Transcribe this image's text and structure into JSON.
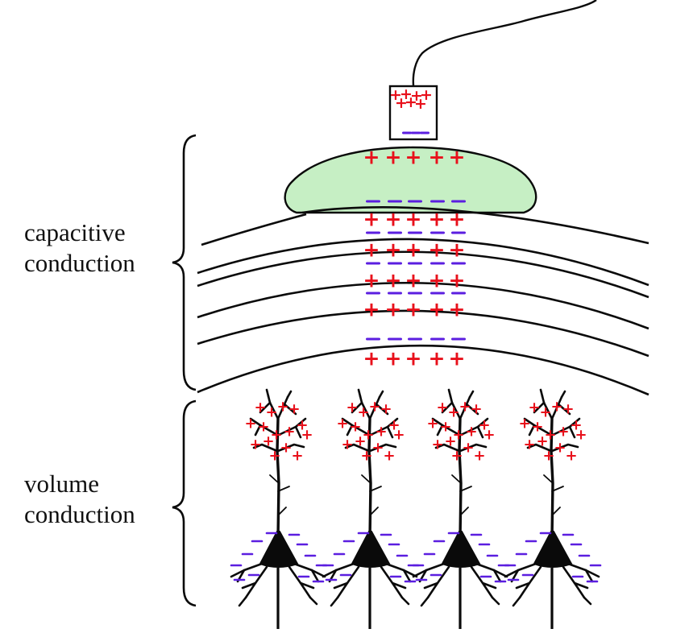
{
  "labels": {
    "capacitive": [
      "capacitive",
      "conduction"
    ],
    "volume": [
      "volume",
      "conduction"
    ]
  },
  "colors": {
    "positive": "#e8101b",
    "negative": "#5b1ee0",
    "gel": "#c6efc4",
    "ink": "#0a0a0a"
  },
  "symbols": {
    "positive": "+",
    "negative": "–"
  },
  "neuron_count": 4
}
